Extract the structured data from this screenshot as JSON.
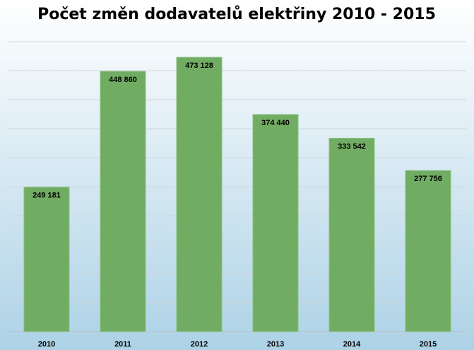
{
  "chart_data": {
    "type": "bar",
    "title": "Počet změn dodavatelů elektřiny 2010 - 2015",
    "xlabel": "",
    "ylabel": "",
    "categories": [
      "2010",
      "2011",
      "2012",
      "2013",
      "2014",
      "2015"
    ],
    "values": [
      249181,
      448860,
      473128,
      374440,
      333542,
      277756
    ],
    "value_labels": [
      "249 181",
      "448 860",
      "473 128",
      "374 440",
      "333 542",
      "277 756"
    ],
    "ylim": [
      0,
      500000
    ],
    "y_gridline_step": 50000,
    "grid": true,
    "legend": "none",
    "colors": {
      "bar": "#70AD63",
      "bar_edge": "#8CC07F",
      "background_top": "#FFFFFF",
      "background_bottom": "#ADD2E6",
      "gridline": "#CFD6DB",
      "axis": "#B9C1C7"
    }
  }
}
